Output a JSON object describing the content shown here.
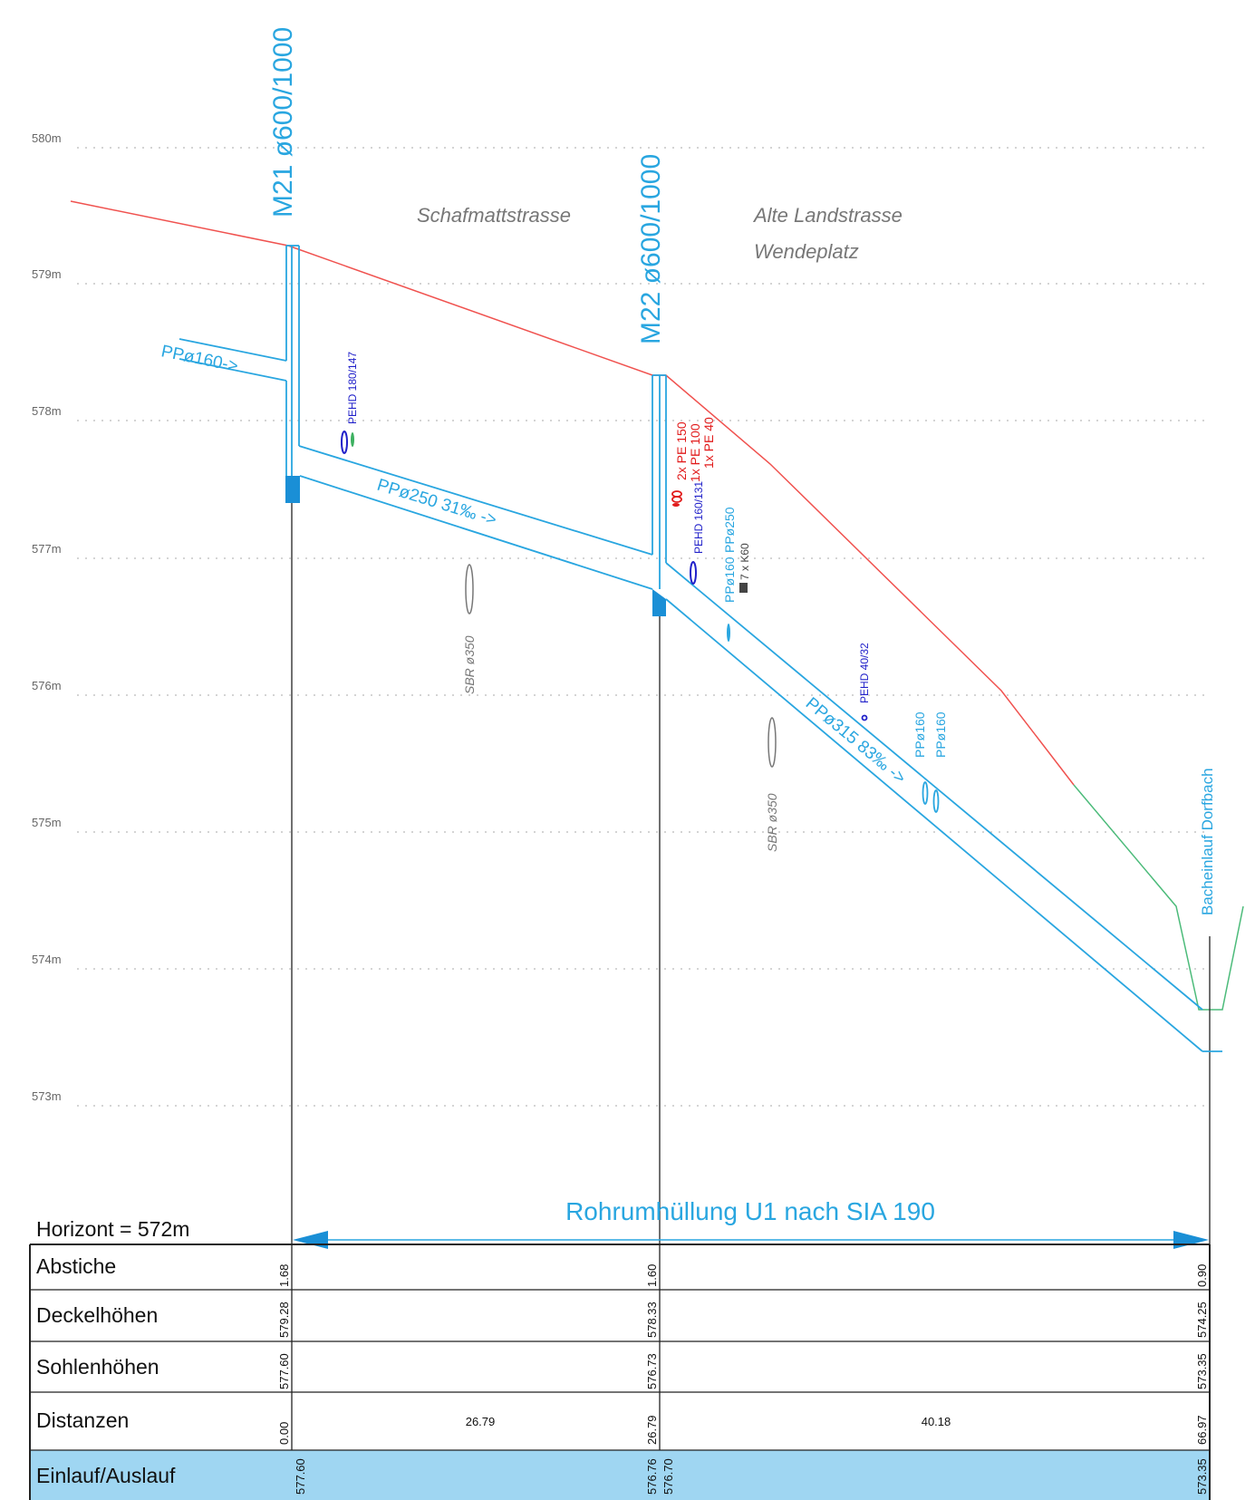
{
  "elevation_labels": [
    "580m",
    "579m",
    "578m",
    "577m",
    "576m",
    "575m",
    "574m",
    "573m"
  ],
  "manholes": {
    "m21": "M21  ø600/1000",
    "m22": "M22  ø600/1000",
    "outlet": "Bacheinlauf Dorfbach"
  },
  "streets": {
    "street1": "Schafmattstrasse",
    "street2_line1": "Alte Landstrasse",
    "street2_line2": "Wendeplatz"
  },
  "pipes": {
    "inlet": "PPø160->",
    "segment1": "PPø250 31‰ ->",
    "segment2": "PPø315 83‰ ->"
  },
  "crossings": {
    "pehd_180": "PEHD 180/147",
    "pe_150": "2x PE 150",
    "pe_100": "1x PE 100",
    "pe_40": "1x PE 40",
    "pehd_160": "PEHD 160/131",
    "pp250": "PPø250",
    "pp160": "PPø160",
    "k60": "7 x K60",
    "pehd_40": "PEHD 40/32",
    "pp160_a": "PPø160",
    "pp160_b": "PPø160",
    "sbr1": "SBR ø350",
    "sbr2": "SBR ø350"
  },
  "encasement": "Rohrumhüllung  U1 nach SIA 190",
  "horizon": "Horizont =  572m",
  "table": {
    "rows": [
      "Abstiche",
      "Deckelhöhen",
      "Sohlenhöhen",
      "Distanzen",
      "Einlauf/Auslauf"
    ],
    "abstiche": [
      "1.68",
      "1.60",
      "0.90"
    ],
    "deckelhoehen": [
      "579.28",
      "578.33",
      "574.25"
    ],
    "sohlenhoehen": [
      "577.60",
      "576.73",
      "573.35"
    ],
    "distanzen": [
      "0.00",
      "26.79",
      "26.79",
      "40.18",
      "66.97"
    ],
    "einlauf_auslauf": [
      "577.60",
      "576.76",
      "576.70",
      "573.35"
    ]
  },
  "colors": {
    "pipe": "#29a6e0",
    "terrain_red": "#f0524f",
    "terrain_green": "#4cbb7a",
    "table_highlight": "#9fd6f2",
    "grid": "#bbbbbb",
    "utility_blue": "#1f1fc9",
    "utility_red": "#e11b1b"
  }
}
